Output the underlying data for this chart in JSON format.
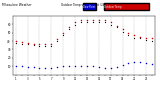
{
  "title_left": "Milwaukee Weather",
  "title_right": "Outdoor Temp vs Dew Point (24 Hours)",
  "hours": [
    1,
    2,
    3,
    4,
    5,
    6,
    7,
    8,
    9,
    10,
    11,
    12,
    13,
    14,
    15,
    16,
    17,
    18,
    19,
    20,
    21,
    22,
    23,
    24
  ],
  "temp": [
    40,
    39,
    38,
    37,
    36,
    36,
    36,
    42,
    50,
    57,
    62,
    65,
    65,
    65,
    65,
    65,
    62,
    58,
    54,
    50,
    47,
    45,
    44,
    43
  ],
  "dewpoint": [
    10,
    10,
    9,
    9,
    8,
    8,
    8,
    9,
    10,
    10,
    11,
    11,
    10,
    10,
    9,
    8,
    8,
    9,
    12,
    14,
    15,
    15,
    14,
    13
  ],
  "feels_like": [
    38,
    37,
    36,
    35,
    34,
    34,
    34,
    40,
    47,
    54,
    59,
    63,
    63,
    63,
    63,
    63,
    59,
    56,
    51,
    47,
    44,
    43,
    41,
    40
  ],
  "temp_color": "#cc0000",
  "dew_color": "#0000cc",
  "feels_color": "#000000",
  "bg_color": "#ffffff",
  "grid_color": "#888888",
  "ylim": [
    0,
    70
  ],
  "ytick_values": [
    10,
    20,
    30,
    40,
    50,
    60
  ],
  "legend_labels": [
    "Dew Point",
    "Outdoor Temp"
  ],
  "legend_colors": [
    "#0000cc",
    "#cc0000"
  ],
  "figsize": [
    1.6,
    0.87
  ],
  "dpi": 100
}
